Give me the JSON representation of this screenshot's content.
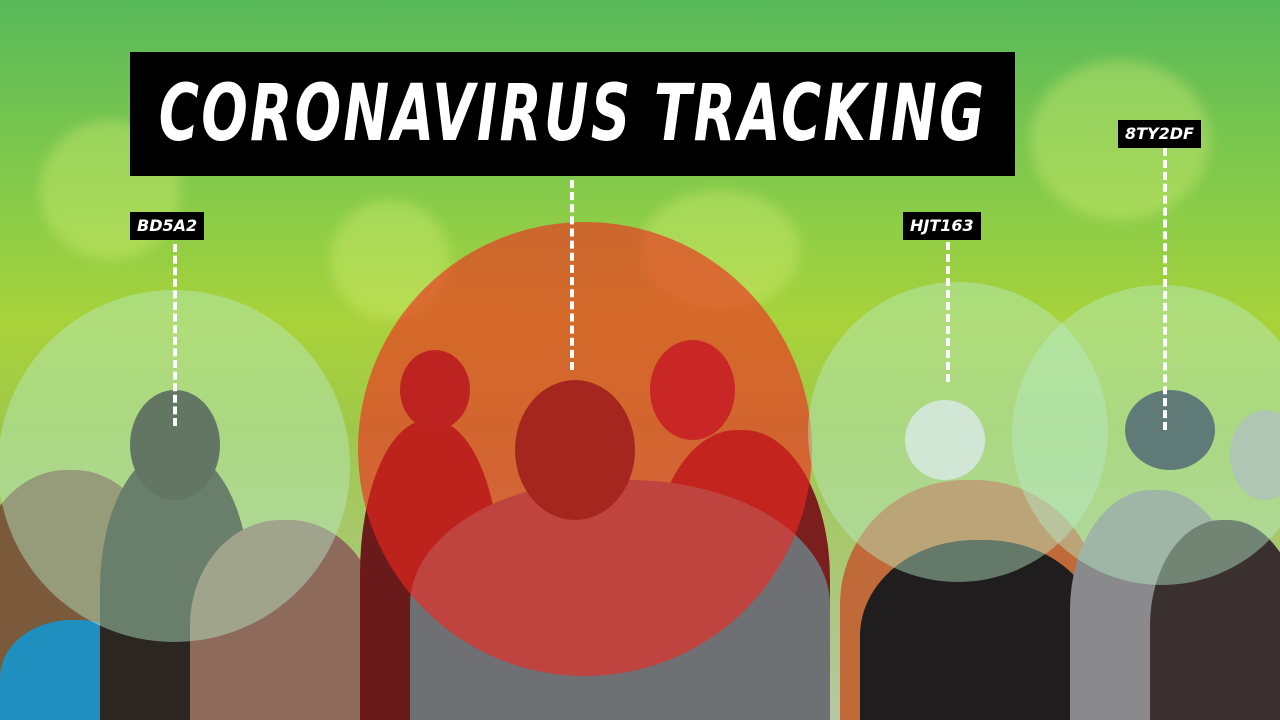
{
  "title": "CORONAVIRUS TRACKING",
  "tags": [
    {
      "id": "BD5A2"
    },
    {
      "id": "HJT163"
    },
    {
      "id": "8TY2DF"
    }
  ],
  "colors": {
    "background_green": "#8ccd48",
    "alert_circle": "#f0281e",
    "safe_circle": "#b9ebc8",
    "label_bg": "#000000",
    "label_text": "#ffffff"
  }
}
